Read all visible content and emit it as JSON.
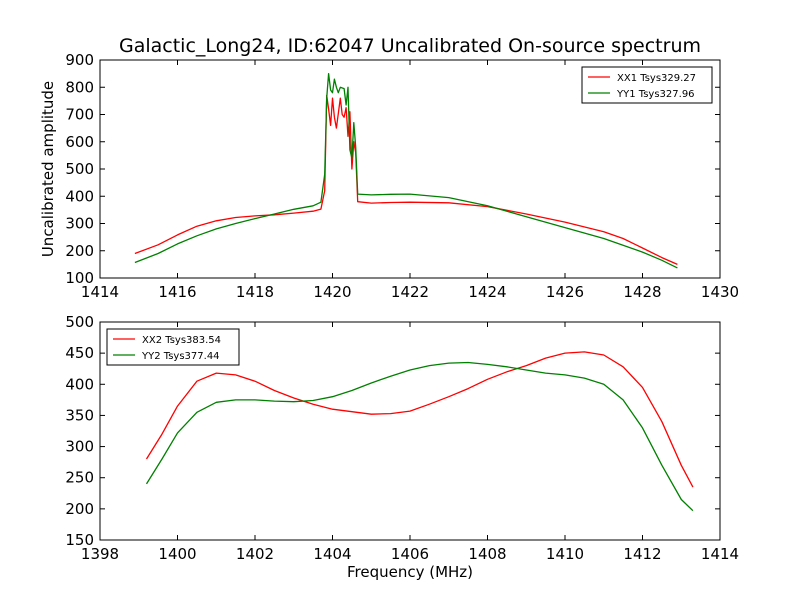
{
  "chart_data": [
    {
      "type": "line",
      "title": "Galactic_Long24, ID:62047 Uncalibrated On-source spectrum",
      "xlabel": "",
      "ylabel": "Uncalibrated amplitude",
      "xlim": [
        1414,
        1430
      ],
      "ylim": [
        100,
        900
      ],
      "x_ticks": [
        1414,
        1416,
        1418,
        1420,
        1422,
        1424,
        1426,
        1428,
        1430
      ],
      "y_ticks": [
        100,
        200,
        300,
        400,
        500,
        600,
        700,
        800,
        900
      ],
      "legend_position": "upper right",
      "series": [
        {
          "name": "XX1 Tsys329.27",
          "color": "#ff0000",
          "points": [
            [
              1414.9,
              190
            ],
            [
              1415.5,
              222
            ],
            [
              1416.0,
              258
            ],
            [
              1416.5,
              290
            ],
            [
              1417.0,
              310
            ],
            [
              1417.5,
              322
            ],
            [
              1418.0,
              328
            ],
            [
              1418.5,
              332
            ],
            [
              1419.0,
              338
            ],
            [
              1419.5,
              345
            ],
            [
              1419.7,
              353
            ],
            [
              1419.8,
              420
            ],
            [
              1419.85,
              770
            ],
            [
              1419.9,
              720
            ],
            [
              1419.95,
              660
            ],
            [
              1420.0,
              760
            ],
            [
              1420.05,
              690
            ],
            [
              1420.1,
              650
            ],
            [
              1420.2,
              760
            ],
            [
              1420.25,
              700
            ],
            [
              1420.3,
              690
            ],
            [
              1420.35,
              725
            ],
            [
              1420.4,
              620
            ],
            [
              1420.45,
              710
            ],
            [
              1420.5,
              500
            ],
            [
              1420.55,
              600
            ],
            [
              1420.6,
              560
            ],
            [
              1420.65,
              380
            ],
            [
              1421.0,
              375
            ],
            [
              1421.5,
              377
            ],
            [
              1422.0,
              378
            ],
            [
              1423.0,
              376
            ],
            [
              1424.0,
              362
            ],
            [
              1425.0,
              335
            ],
            [
              1426.0,
              305
            ],
            [
              1427.0,
              270
            ],
            [
              1427.5,
              245
            ],
            [
              1428.0,
              210
            ],
            [
              1428.5,
              175
            ],
            [
              1428.9,
              150
            ]
          ]
        },
        {
          "name": "YY1 Tsys327.96",
          "color": "#008000",
          "points": [
            [
              1414.9,
              157
            ],
            [
              1415.5,
              190
            ],
            [
              1416.0,
              225
            ],
            [
              1416.5,
              255
            ],
            [
              1417.0,
              280
            ],
            [
              1417.5,
              300
            ],
            [
              1418.0,
              318
            ],
            [
              1418.5,
              335
            ],
            [
              1419.0,
              352
            ],
            [
              1419.5,
              365
            ],
            [
              1419.7,
              378
            ],
            [
              1419.8,
              480
            ],
            [
              1419.85,
              760
            ],
            [
              1419.9,
              850
            ],
            [
              1419.95,
              790
            ],
            [
              1420.0,
              780
            ],
            [
              1420.05,
              830
            ],
            [
              1420.1,
              800
            ],
            [
              1420.15,
              780
            ],
            [
              1420.2,
              800
            ],
            [
              1420.3,
              795
            ],
            [
              1420.35,
              735
            ],
            [
              1420.4,
              800
            ],
            [
              1420.45,
              570
            ],
            [
              1420.5,
              540
            ],
            [
              1420.55,
              670
            ],
            [
              1420.6,
              580
            ],
            [
              1420.65,
              408
            ],
            [
              1421.0,
              405
            ],
            [
              1421.5,
              407
            ],
            [
              1422.0,
              408
            ],
            [
              1423.0,
              395
            ],
            [
              1424.0,
              365
            ],
            [
              1425.0,
              325
            ],
            [
              1426.0,
              285
            ],
            [
              1427.0,
              245
            ],
            [
              1428.0,
              195
            ],
            [
              1428.5,
              165
            ],
            [
              1428.9,
              137
            ]
          ]
        }
      ]
    },
    {
      "type": "line",
      "title": "",
      "xlabel": "Frequency (MHz)",
      "ylabel": "",
      "xlim": [
        1398,
        1414
      ],
      "ylim": [
        150,
        500
      ],
      "x_ticks": [
        1398,
        1400,
        1402,
        1404,
        1406,
        1408,
        1410,
        1412,
        1414
      ],
      "y_ticks": [
        150,
        200,
        250,
        300,
        350,
        400,
        450,
        500
      ],
      "legend_position": "upper left",
      "series": [
        {
          "name": "XX2 Tsys383.54",
          "color": "#ff0000",
          "points": [
            [
              1399.2,
              280
            ],
            [
              1399.6,
              320
            ],
            [
              1400.0,
              365
            ],
            [
              1400.5,
              405
            ],
            [
              1401.0,
              418
            ],
            [
              1401.5,
              415
            ],
            [
              1402.0,
              405
            ],
            [
              1402.5,
              390
            ],
            [
              1403.0,
              378
            ],
            [
              1403.5,
              368
            ],
            [
              1404.0,
              360
            ],
            [
              1404.5,
              356
            ],
            [
              1405.0,
              352
            ],
            [
              1405.5,
              353
            ],
            [
              1406.0,
              357
            ],
            [
              1406.5,
              368
            ],
            [
              1407.0,
              380
            ],
            [
              1407.5,
              393
            ],
            [
              1408.0,
              408
            ],
            [
              1408.5,
              420
            ],
            [
              1409.0,
              430
            ],
            [
              1409.5,
              442
            ],
            [
              1410.0,
              450
            ],
            [
              1410.5,
              452
            ],
            [
              1411.0,
              447
            ],
            [
              1411.5,
              428
            ],
            [
              1412.0,
              395
            ],
            [
              1412.5,
              340
            ],
            [
              1413.0,
              270
            ],
            [
              1413.3,
              235
            ]
          ]
        },
        {
          "name": "YY2 Tsys377.44",
          "color": "#008000",
          "points": [
            [
              1399.2,
              240
            ],
            [
              1399.6,
              280
            ],
            [
              1400.0,
              322
            ],
            [
              1400.5,
              355
            ],
            [
              1401.0,
              371
            ],
            [
              1401.5,
              375
            ],
            [
              1402.0,
              375
            ],
            [
              1402.5,
              373
            ],
            [
              1403.0,
              372
            ],
            [
              1403.5,
              374
            ],
            [
              1404.0,
              380
            ],
            [
              1404.5,
              390
            ],
            [
              1405.0,
              402
            ],
            [
              1405.5,
              413
            ],
            [
              1406.0,
              423
            ],
            [
              1406.5,
              430
            ],
            [
              1407.0,
              434
            ],
            [
              1407.5,
              435
            ],
            [
              1408.0,
              432
            ],
            [
              1408.5,
              428
            ],
            [
              1409.0,
              423
            ],
            [
              1409.5,
              418
            ],
            [
              1410.0,
              415
            ],
            [
              1410.5,
              410
            ],
            [
              1411.0,
              400
            ],
            [
              1411.5,
              375
            ],
            [
              1412.0,
              330
            ],
            [
              1412.5,
              270
            ],
            [
              1413.0,
              215
            ],
            [
              1413.3,
              197
            ]
          ]
        }
      ]
    }
  ]
}
